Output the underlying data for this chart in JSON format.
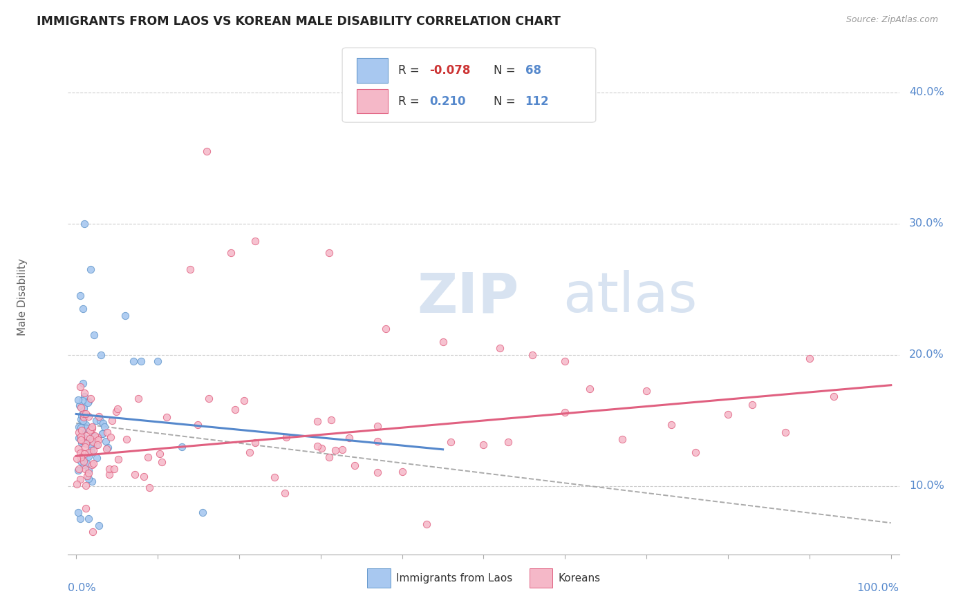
{
  "title": "IMMIGRANTS FROM LAOS VS KOREAN MALE DISABILITY CORRELATION CHART",
  "source": "Source: ZipAtlas.com",
  "ylabel": "Male Disability",
  "color_blue_fill": "#a8c8f0",
  "color_blue_edge": "#6699cc",
  "color_pink_fill": "#f5b8c8",
  "color_pink_edge": "#e06080",
  "color_blue_line": "#5588cc",
  "color_pink_line": "#e06080",
  "color_gray_dash": "#aaaaaa",
  "color_grid": "#cccccc",
  "color_yaxis_label": "#5588cc",
  "color_r_neg": "#cc3333",
  "color_r_pos": "#5588cc",
  "color_n": "#5588cc",
  "color_label_dark": "#333333",
  "watermark_color": "#c8d8ec",
  "xlim": [
    -0.01,
    1.01
  ],
  "ylim": [
    0.048,
    0.44
  ],
  "ytick_vals": [
    0.1,
    0.2,
    0.3,
    0.4
  ],
  "ytick_labels": [
    "10.0%",
    "20.0%",
    "30.0%",
    "40.0%"
  ],
  "blue_line_x0": 0.0,
  "blue_line_y0": 0.155,
  "blue_line_x1": 0.45,
  "blue_line_y1": 0.128,
  "pink_line_x0": 0.0,
  "pink_line_y0": 0.123,
  "pink_line_x1": 1.0,
  "pink_line_y1": 0.177,
  "gray_line_x0": 0.0,
  "gray_line_y0": 0.148,
  "gray_line_x1": 1.0,
  "gray_line_y1": 0.072,
  "legend_r1": "-0.078",
  "legend_n1": "68",
  "legend_r2": "0.210",
  "legend_n2": "112"
}
